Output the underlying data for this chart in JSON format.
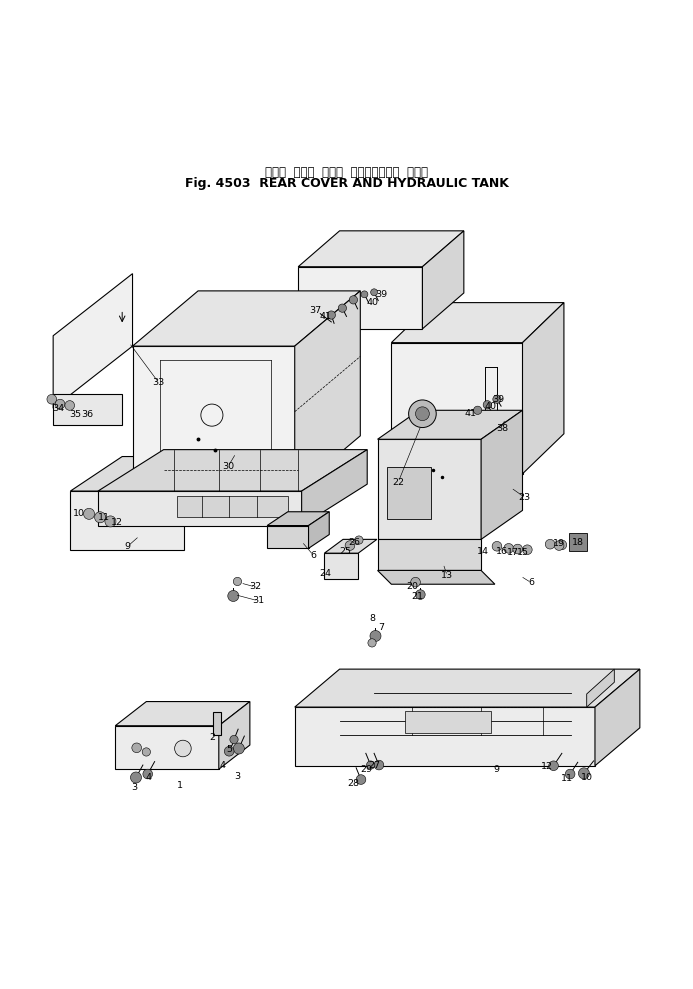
{
  "title_japanese": "リヤー  カバー  および  ハイドロリック  タンク",
  "title_english": "Fig. 4503  REAR COVER AND HYDRAULIC TANK",
  "bg_color": "#ffffff",
  "line_color": "#000000",
  "text_color": "#000000",
  "fig_width": 6.93,
  "fig_height": 9.89
}
